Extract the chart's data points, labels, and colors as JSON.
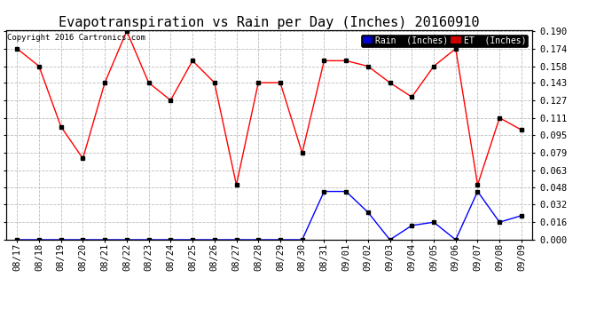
{
  "title": "Evapotranspiration vs Rain per Day (Inches) 20160910",
  "copyright_text": "Copyright 2016 Cartronics.com",
  "x_labels": [
    "08/17",
    "08/18",
    "08/19",
    "08/20",
    "08/21",
    "08/22",
    "08/23",
    "08/24",
    "08/25",
    "08/26",
    "08/27",
    "08/28",
    "08/29",
    "08/30",
    "08/31",
    "09/01",
    "09/02",
    "09/03",
    "09/04",
    "09/05",
    "09/06",
    "09/07",
    "09/08",
    "09/09"
  ],
  "et_values": [
    0.174,
    0.158,
    0.103,
    0.074,
    0.143,
    0.19,
    0.143,
    0.127,
    0.163,
    0.143,
    0.05,
    0.143,
    0.143,
    0.079,
    0.163,
    0.163,
    0.158,
    0.143,
    0.13,
    0.158,
    0.174,
    0.05,
    0.111,
    0.1
  ],
  "rain_values": [
    0.0,
    0.0,
    0.0,
    0.0,
    0.0,
    0.0,
    0.0,
    0.0,
    0.0,
    0.0,
    0.0,
    0.0,
    0.0,
    0.0,
    0.044,
    0.044,
    0.025,
    0.0,
    0.013,
    0.016,
    0.0,
    0.044,
    0.016,
    0.022
  ],
  "et_color": "red",
  "rain_color": "blue",
  "marker_color": "black",
  "ylim": [
    0.0,
    0.19
  ],
  "yticks": [
    0.0,
    0.016,
    0.032,
    0.048,
    0.063,
    0.079,
    0.095,
    0.111,
    0.127,
    0.143,
    0.158,
    0.174,
    0.19
  ],
  "background_color": "#ffffff",
  "grid_color": "#bbbbbb",
  "legend_rain_bg": "#0000cc",
  "legend_et_bg": "#cc0000",
  "title_fontsize": 11,
  "tick_fontsize": 7.5,
  "copyright_fontsize": 6.5
}
